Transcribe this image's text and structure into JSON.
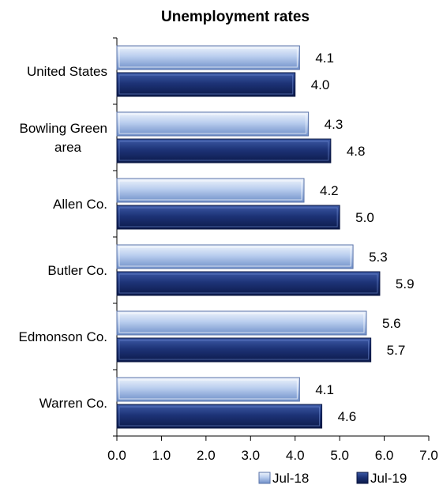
{
  "chart_data": {
    "type": "bar",
    "orientation": "horizontal",
    "title": "Unemployment rates",
    "categories": [
      [
        "United States"
      ],
      [
        "Bowling Green",
        "area"
      ],
      [
        "Allen Co."
      ],
      [
        "Butler Co."
      ],
      [
        "Edmonson Co."
      ],
      [
        "Warren Co."
      ]
    ],
    "series": [
      {
        "name": "Jul-18",
        "values": [
          4.1,
          4.3,
          4.2,
          5.3,
          5.6,
          4.1
        ],
        "labels": [
          "4.1",
          "4.3",
          "4.2",
          "5.3",
          "5.6",
          "4.1"
        ],
        "color": "#9db9e8"
      },
      {
        "name": "Jul-19",
        "values": [
          4.0,
          4.8,
          5.0,
          5.9,
          5.7,
          4.6
        ],
        "labels": [
          "4.0",
          "4.8",
          "5.0",
          "5.9",
          "5.7",
          "4.6"
        ],
        "color": "#1a2f6e"
      }
    ],
    "xlim": [
      0,
      7
    ],
    "xticks": [
      "0.0",
      "1.0",
      "2.0",
      "3.0",
      "4.0",
      "5.0",
      "6.0",
      "7.0"
    ],
    "xlabel": "",
    "ylabel": "",
    "grid": false,
    "legend_position": "bottom-right"
  }
}
